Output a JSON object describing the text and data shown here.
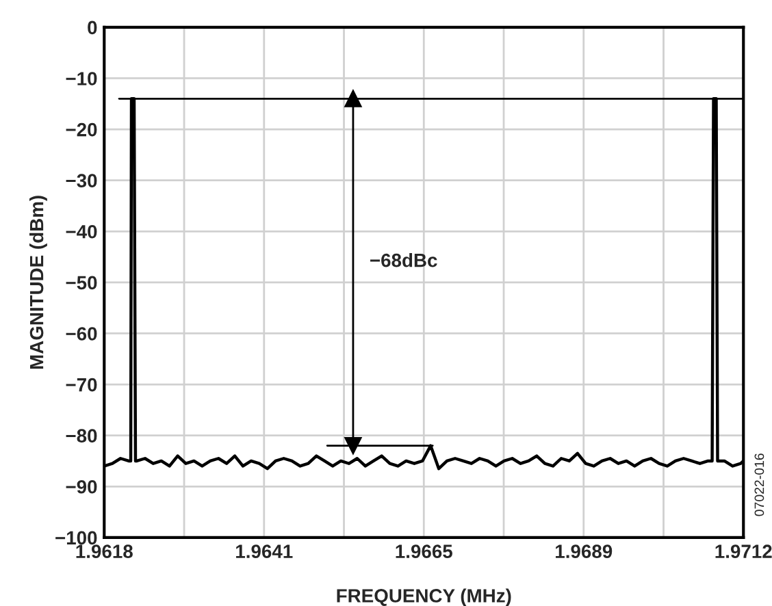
{
  "chart_data": {
    "type": "line",
    "xlabel": "FREQUENCY (MHz)",
    "ylabel": "MAGNITUDE (dBm)",
    "xlim": [
      1.9618,
      1.9712
    ],
    "ylim": [
      -100,
      0
    ],
    "xticks": [
      1.9618,
      {
        "value": 1.962975,
        "label": null
      },
      {
        "value": 1.96415,
        "label": "1.9641"
      },
      {
        "value": 1.965325,
        "label": null
      },
      1.9665,
      {
        "value": 1.967675,
        "label": null
      },
      {
        "value": 1.96885,
        "label": "1.9689"
      },
      {
        "value": 1.970025,
        "label": null
      },
      1.9712
    ],
    "yticks": [
      {
        "value": -100,
        "label": "−100"
      },
      {
        "value": -90,
        "label": "−90"
      },
      {
        "value": -80,
        "label": "−80"
      },
      {
        "value": -70,
        "label": "−70"
      },
      {
        "value": -60,
        "label": "−60"
      },
      {
        "value": -50,
        "label": "−50"
      },
      {
        "value": -40,
        "label": "−40"
      },
      {
        "value": -30,
        "label": "−30"
      },
      {
        "value": -20,
        "label": "−20"
      },
      {
        "value": -10,
        "label": "−10"
      },
      0
    ],
    "grid": true,
    "legend": false,
    "series": [
      {
        "color": "#000000",
        "x": [
          1.9618,
          1.96192,
          1.96204,
          1.96216,
          1.96219,
          1.9622,
          1.96224,
          1.96226,
          1.96228,
          1.9624,
          1.96252,
          1.96264,
          1.96276,
          1.96288,
          1.963,
          1.96312,
          1.96324,
          1.96336,
          1.96348,
          1.9636,
          1.96372,
          1.96384,
          1.96396,
          1.96408,
          1.9642,
          1.96432,
          1.96444,
          1.96456,
          1.96468,
          1.9648,
          1.96492,
          1.96504,
          1.96516,
          1.96528,
          1.9654,
          1.96552,
          1.96564,
          1.96576,
          1.96588,
          1.966,
          1.96612,
          1.96624,
          1.96636,
          1.96648,
          1.9666,
          1.96672,
          1.96684,
          1.96696,
          1.96708,
          1.9672,
          1.96732,
          1.96744,
          1.96756,
          1.96768,
          1.9678,
          1.96792,
          1.96804,
          1.96816,
          1.96828,
          1.9684,
          1.96852,
          1.96864,
          1.96876,
          1.96888,
          1.969,
          1.96912,
          1.96924,
          1.96936,
          1.96948,
          1.9696,
          1.96972,
          1.96984,
          1.96996,
          1.97008,
          1.9702,
          1.97032,
          1.97044,
          1.97056,
          1.97068,
          1.97074,
          1.97076,
          1.9708,
          1.97082,
          1.97092,
          1.97104,
          1.97116,
          1.9712
        ],
        "values": [
          -86,
          -85.5,
          -84.5,
          -85,
          -85,
          -14,
          -14,
          -85,
          -85,
          -84.5,
          -85.5,
          -85,
          -86,
          -84,
          -85.5,
          -85,
          -86,
          -85,
          -84.5,
          -85.5,
          -84,
          -86,
          -85,
          -85.5,
          -86.5,
          -85,
          -84.5,
          -85,
          -86,
          -85.5,
          -84,
          -85,
          -86,
          -85,
          -85.5,
          -84.5,
          -86,
          -85,
          -84,
          -85.5,
          -86,
          -85,
          -85.5,
          -85,
          -82,
          -86.5,
          -85,
          -84.5,
          -85,
          -85.5,
          -84.5,
          -85,
          -86,
          -85,
          -84.5,
          -85.5,
          -85,
          -84,
          -85.5,
          -86,
          -84.5,
          -85,
          -83.5,
          -85.5,
          -86,
          -85,
          -84.5,
          -85.5,
          -85,
          -86,
          -85,
          -84.5,
          -85.5,
          -86,
          -85,
          -84.5,
          -85,
          -85.5,
          -85,
          -85,
          -14,
          -14,
          -85,
          -85,
          -86,
          -85.5,
          -85
        ]
      },
      {
        "color": "#000000",
        "x": [
          1.96202,
          1.9712
        ],
        "values": [
          -14,
          -14
        ]
      },
      {
        "color": "#000000",
        "x": [
          1.96508,
          1.96663
        ],
        "values": [
          -82,
          -82
        ]
      },
      {
        "color": "#000000",
        "x": [
          1.96546,
          1.96546
        ],
        "values": [
          -14,
          -82
        ],
        "marker": "triangle"
      }
    ],
    "annotations": [
      "−68dBc",
      "07022-016"
    ]
  }
}
